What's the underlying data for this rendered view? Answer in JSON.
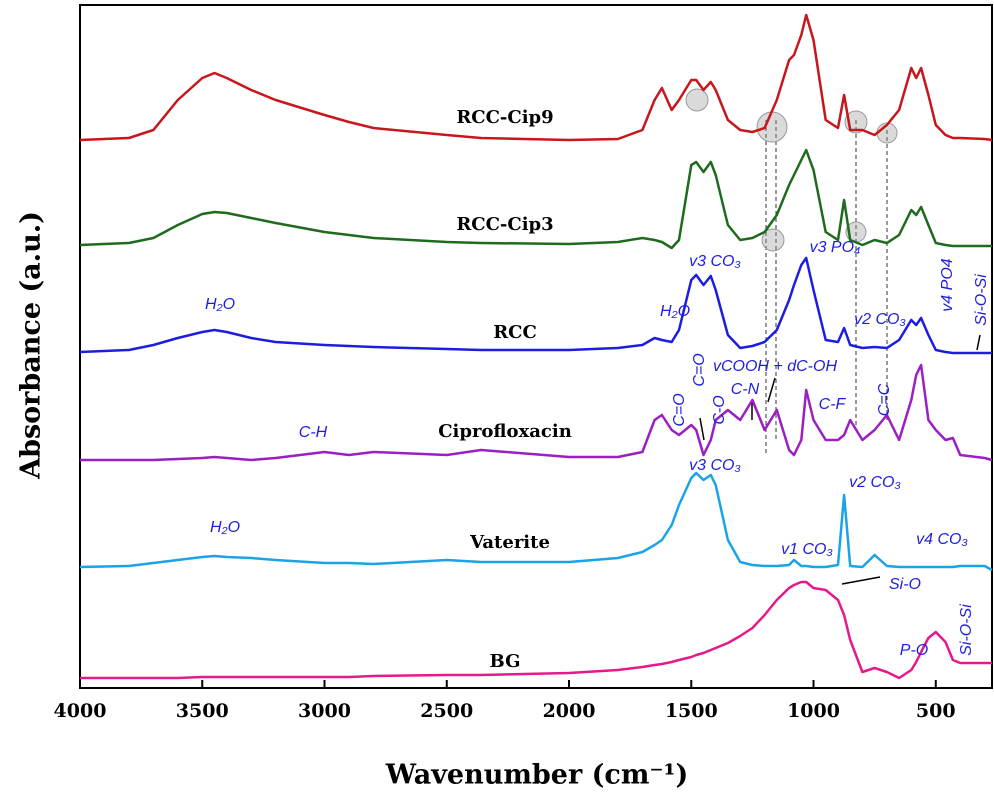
{
  "chart_data": {
    "type": "line",
    "xlabel": "Wavenumber (cm⁻¹)",
    "ylabel": "Absorbance (a.u.)",
    "xlim": [
      4000,
      270
    ],
    "ylim": [
      0,
      683
    ],
    "xticks": [
      4000,
      3500,
      3000,
      2500,
      2000,
      1500,
      1000,
      500
    ],
    "x": [
      4000,
      3800,
      3700,
      3600,
      3500,
      3450,
      3400,
      3300,
      3200,
      3000,
      2900,
      2800,
      2500,
      2360,
      2000,
      1800,
      1700,
      1650,
      1620,
      1580,
      1550,
      1500,
      1480,
      1450,
      1420,
      1400,
      1350,
      1300,
      1250,
      1200,
      1150,
      1100,
      1080,
      1050,
      1030,
      1000,
      950,
      900,
      875,
      850,
      800,
      750,
      700,
      650,
      600,
      580,
      560,
      530,
      500,
      460,
      430,
      400,
      300,
      270
    ],
    "series": [
      {
        "name": "RCC-Cip9",
        "color": "#c8171c",
        "values": [
          548,
          550,
          558,
          588,
          610,
          615,
          610,
          598,
          588,
          573,
          566,
          560,
          553,
          550,
          548,
          549,
          558,
          588,
          600,
          578,
          588,
          608,
          608,
          598,
          606,
          598,
          568,
          558,
          556,
          560,
          588,
          628,
          633,
          653,
          673,
          648,
          568,
          560,
          593,
          558,
          558,
          553,
          563,
          578,
          620,
          610,
          620,
          593,
          563,
          553,
          550,
          550,
          549,
          548
        ]
      },
      {
        "name": "RCC-Cip3",
        "color": "#1e6b1e",
        "values": [
          443,
          445,
          450,
          463,
          474,
          476,
          475,
          470,
          465,
          456,
          453,
          450,
          446,
          445,
          444,
          446,
          450,
          448,
          446,
          440,
          448,
          523,
          526,
          516,
          526,
          513,
          463,
          448,
          450,
          456,
          473,
          503,
          513,
          528,
          538,
          518,
          456,
          448,
          488,
          448,
          443,
          448,
          445,
          453,
          478,
          473,
          481,
          463,
          445,
          443,
          442,
          442,
          442,
          442
        ]
      },
      {
        "name": "RCC",
        "color": "#1d1de0",
        "values": [
          336,
          338,
          343,
          350,
          356,
          358,
          356,
          350,
          346,
          343,
          342,
          341,
          339,
          338,
          338,
          340,
          343,
          350,
          348,
          346,
          358,
          408,
          413,
          403,
          412,
          398,
          353,
          340,
          342,
          346,
          358,
          388,
          403,
          423,
          430,
          398,
          348,
          346,
          360,
          343,
          340,
          341,
          340,
          348,
          368,
          363,
          370,
          353,
          338,
          336,
          335,
          335,
          335,
          335
        ]
      },
      {
        "name": "Ciprofloxacin",
        "color": "#9b1fc2",
        "values": [
          228,
          228,
          228,
          229,
          230,
          231,
          230,
          228,
          230,
          236,
          233,
          236,
          233,
          238,
          231,
          231,
          236,
          268,
          273,
          258,
          253,
          263,
          258,
          233,
          248,
          268,
          278,
          268,
          288,
          258,
          278,
          238,
          233,
          248,
          298,
          268,
          248,
          248,
          253,
          268,
          248,
          258,
          273,
          248,
          288,
          313,
          323,
          268,
          258,
          248,
          250,
          233,
          230,
          228
        ]
      },
      {
        "name": "Vaterite",
        "color": "#1aa3e8",
        "values": [
          121,
          122,
          125,
          128,
          131,
          132,
          131,
          130,
          128,
          125,
          125,
          124,
          128,
          126,
          126,
          130,
          136,
          143,
          148,
          163,
          183,
          210,
          215,
          208,
          213,
          203,
          148,
          126,
          123,
          122,
          122,
          123,
          128,
          122,
          122,
          121,
          121,
          123,
          193,
          122,
          121,
          133,
          122,
          121,
          121,
          121,
          121,
          121,
          121,
          121,
          121,
          122,
          122,
          118
        ]
      },
      {
        "name": "BG",
        "color": "#e6198c",
        "values": [
          10,
          10,
          10,
          10,
          11,
          11,
          11,
          11,
          11,
          11,
          11,
          12,
          13,
          13,
          15,
          18,
          21,
          23,
          24,
          26,
          28,
          31,
          33,
          35,
          38,
          40,
          45,
          52,
          60,
          73,
          88,
          100,
          103,
          106,
          106,
          100,
          98,
          88,
          73,
          48,
          16,
          20,
          16,
          10,
          18,
          26,
          36,
          50,
          56,
          46,
          28,
          25,
          25,
          25
        ]
      }
    ],
    "annotations": [
      "H₂O",
      "v3 CO₃",
      "v3 PO₄",
      "H₂O",
      "v2 CO₃",
      "v4 PO4",
      "Si-O-Si",
      "C=O",
      "C=O",
      "C-O",
      "vCOOH + dC-OH",
      "C-N",
      "C-F",
      "C=C",
      "C-H",
      "H₂O",
      "v3 CO₃",
      "v2 CO₃",
      "v1 CO₃",
      "v4 CO₃",
      "Si-O",
      "P-O",
      "Si-O-Si"
    ]
  }
}
